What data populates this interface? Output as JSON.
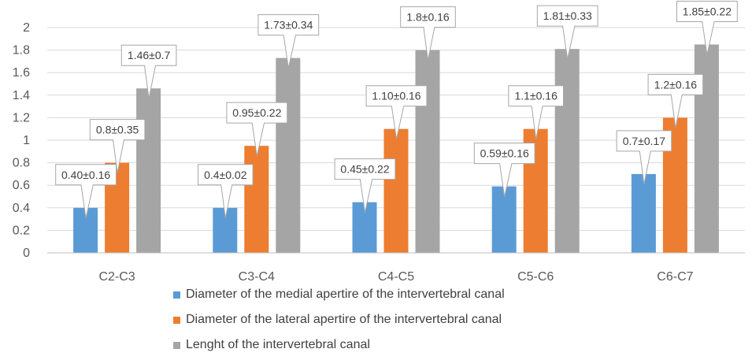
{
  "chart_data": {
    "type": "bar",
    "title": "",
    "xlabel": "",
    "ylabel": "",
    "ylim": [
      0,
      2
    ],
    "yticks": [
      0,
      0.2,
      0.4,
      0.6,
      0.8,
      1,
      1.2,
      1.4,
      1.6,
      1.8,
      2
    ],
    "ytick_labels": [
      "0",
      "0.2",
      "0.4",
      "0.6",
      "0.8",
      "1",
      "1.2",
      "1.4",
      "1.6",
      "1.8",
      "2"
    ],
    "grid": true,
    "legend_position": "bottom",
    "categories": [
      "C2-C3",
      "C3-C4",
      "C4-C5",
      "C5-C6",
      "C6-C7"
    ],
    "series": [
      {
        "name": "Diameter of the medial apertire of the intervertebral canal",
        "color": "#5B9BD5",
        "values": [
          0.4,
          0.4,
          0.45,
          0.59,
          0.7
        ],
        "labels": [
          "0.40±0.16",
          "0.4±0.02",
          "0.45±0.22",
          "0.59±0.16",
          "0.7±0.17"
        ]
      },
      {
        "name": "Diameter of the lateral apertire of the intervertebral canal",
        "color": "#ED7D31",
        "values": [
          0.8,
          0.95,
          1.1,
          1.1,
          1.2
        ],
        "labels": [
          "0.8±0.35",
          "0.95±0.22",
          "1.10±0.16",
          "1.1±0.16",
          "1.2±0.16"
        ]
      },
      {
        "name": "Lenght of the intervertebral canal",
        "color": "#A5A5A5",
        "values": [
          1.46,
          1.73,
          1.8,
          1.81,
          1.85
        ],
        "labels": [
          "1.46±0.7",
          "1.73±0.34",
          "1.8±0.16",
          "1.81±0.33",
          "1.85±0.22"
        ]
      }
    ]
  }
}
